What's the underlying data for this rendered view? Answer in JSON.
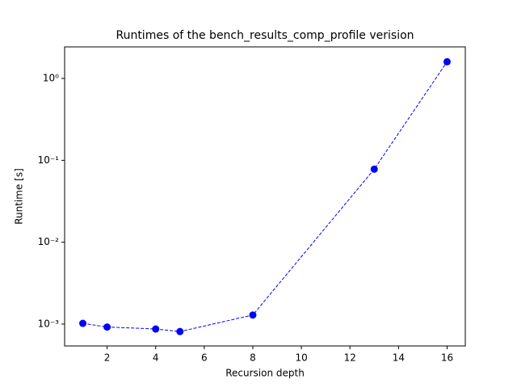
{
  "chart_data": {
    "type": "line",
    "title": "Runtimes of the bench_results_comp_profile verision",
    "x_label": "Recursion depth",
    "y_label": "Runtime [s]",
    "x": [
      1,
      2,
      4,
      5,
      8,
      13,
      16
    ],
    "series": [
      {
        "color": "#0000ff",
        "values": [
          0.00102,
          0.00092,
          0.00087,
          0.00081,
          0.00129,
          0.078,
          1.6
        ]
      }
    ],
    "xlim": [
      0.25,
      16.75
    ],
    "xticks": [
      2,
      4,
      6,
      8,
      10,
      12,
      14,
      16
    ],
    "ylim": [
      0.00054,
      2.43
    ],
    "yticks": [
      {
        "value": 0.001,
        "label": "10⁻³"
      },
      {
        "value": 0.01,
        "label": "10⁻²"
      },
      {
        "value": 0.1,
        "label": "10⁻¹"
      },
      {
        "value": 1,
        "label": "10⁰"
      }
    ],
    "log_y": true,
    "grid": false
  }
}
